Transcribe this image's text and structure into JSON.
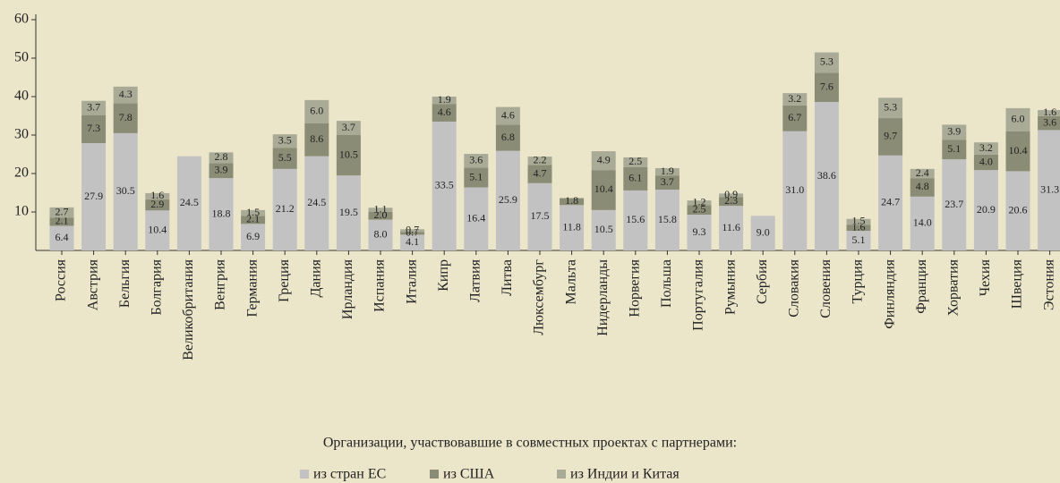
{
  "chart_data": {
    "type": "stacked_bar",
    "categories": [
      "Россия",
      "Австрия",
      "Бельгия",
      "Болгария",
      "Великобритания",
      "Венгрия",
      "Германия",
      "Греция",
      "Дания",
      "Ирландия",
      "Испания",
      "Италия",
      "Кипр",
      "Латвия",
      "Литва",
      "Люксембург",
      "Мальта",
      "Нидерланды",
      "Норвегия",
      "Польша",
      "Португалия",
      "Румыния",
      "Сербия",
      "Словакия",
      "Словения",
      "Турция",
      "Финляндия",
      "Франция",
      "Хорватия",
      "Чехия",
      "Швеция",
      "Эстония"
    ],
    "series": [
      {
        "name": "из стран ЕС",
        "color": "#c2c2c2",
        "values": [
          6.4,
          27.9,
          30.5,
          10.4,
          24.5,
          18.8,
          6.9,
          21.2,
          24.5,
          19.5,
          8.0,
          4.1,
          33.5,
          16.4,
          25.9,
          17.5,
          11.8,
          10.5,
          15.6,
          15.8,
          9.3,
          11.6,
          9.0,
          31.0,
          38.6,
          5.1,
          24.7,
          14.0,
          23.7,
          20.9,
          20.6,
          31.3
        ],
        "value_labels": [
          "6.4",
          "27.9",
          "30.5",
          "10.4",
          "24.5",
          "18.8",
          "6.9",
          "21.2",
          "24.5",
          "19.5",
          "8.0",
          "4.1",
          "33.5",
          "16.4",
          "25.9",
          "17.5",
          "11.8",
          "10.5",
          "15.6",
          "15.8",
          "9.3",
          "11.6",
          "9.0",
          "31.0",
          "38.6",
          "5.1",
          "24.7",
          "14.0",
          "23.7",
          "20.9",
          "20.6",
          "31.3"
        ]
      },
      {
        "name": "из США",
        "color": "#8b8c76",
        "values": [
          2.1,
          7.3,
          7.8,
          2.9,
          null,
          3.9,
          2.1,
          5.5,
          8.6,
          10.5,
          2.0,
          0.7,
          4.6,
          5.1,
          6.8,
          4.7,
          1.8,
          10.4,
          6.1,
          3.7,
          2.5,
          2.3,
          null,
          6.7,
          7.6,
          1.6,
          9.7,
          4.8,
          5.1,
          4.0,
          10.4,
          3.6
        ],
        "value_labels": [
          "2.1",
          "7.3",
          "7.8",
          "2.9",
          null,
          "3.9",
          "2.1",
          "5.5",
          "8.6",
          "10.5",
          "2.0",
          "0.7",
          "4.6",
          "5.1",
          "6.8",
          "4.7",
          "1.8",
          "10.4",
          "6.1",
          "3.7",
          "2.5",
          "2.3",
          null,
          "6.7",
          "7.6",
          "1.6",
          "9.7",
          "4.8",
          "5.1",
          "4.0",
          "10.4",
          "3.6"
        ]
      },
      {
        "name": "из Индии и Китая",
        "color": "#aaab97",
        "values": [
          2.7,
          3.7,
          4.3,
          1.6,
          null,
          2.8,
          1.5,
          3.5,
          6.0,
          3.7,
          1.1,
          0.7,
          1.9,
          3.6,
          4.6,
          2.2,
          null,
          4.9,
          2.5,
          1.9,
          1.2,
          0.9,
          null,
          3.2,
          5.3,
          1.5,
          5.3,
          2.4,
          3.9,
          3.2,
          6.0,
          1.6
        ],
        "value_labels": [
          "2.7",
          "3.7",
          "4.3",
          "1.6",
          null,
          "2.8",
          "1.5",
          "3.5",
          "6.0",
          "3.7",
          "1.1",
          "0.7",
          "1.9",
          "3.6",
          "4.6",
          "2.2",
          null,
          "4.9",
          "2.5",
          "1.9",
          "1.2",
          "0.9",
          null,
          "3.2",
          "5.3",
          "1.5",
          "5.3",
          "2.4",
          "3.9",
          "3.2",
          "6.0",
          "1.6"
        ]
      }
    ],
    "ylim": [
      0,
      60
    ],
    "yticks": [
      10,
      20,
      30,
      40,
      50,
      60
    ],
    "legend_title": "Организации, участвовавшие в совместных проектах с партнерами:"
  }
}
